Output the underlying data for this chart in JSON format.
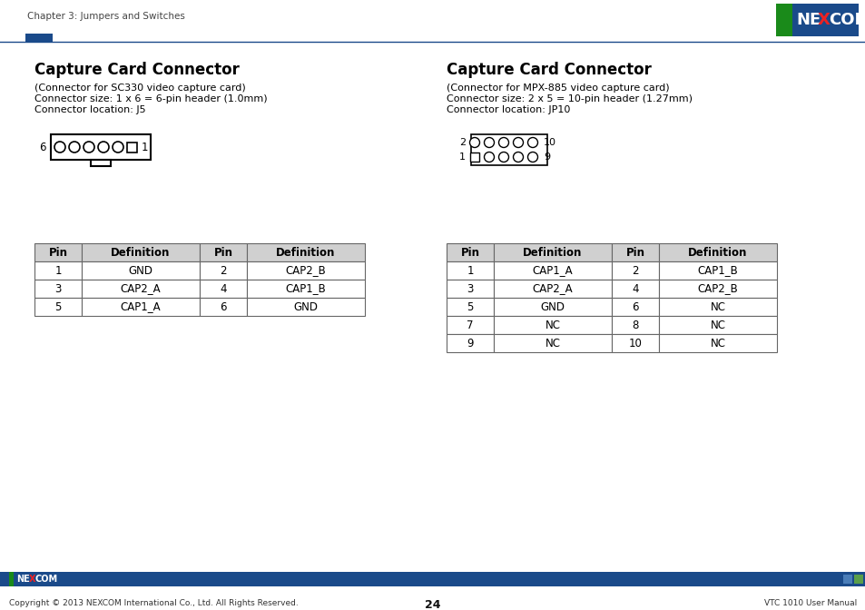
{
  "page_title": "Chapter 3: Jumpers and Switches",
  "page_number": "24",
  "footer_left": "Copyright © 2013 NEXCOM International Co., Ltd. All Rights Reserved.",
  "footer_right": "VTC 1010 User Manual",
  "header_bar_color": "#1a4a8a",
  "nexcom_green": "#1a8a1a",
  "nexcom_blue": "#1a4a8a",
  "left_section_title": "Capture Card Connector",
  "left_line1": "(Connector for SC330 video capture card)",
  "left_line2": "Connector size: 1 x 6 = 6-pin header (1.0mm)",
  "left_line3": "Connector location: J5",
  "right_section_title": "Capture Card Connector",
  "right_line1": "(Connector for MPX-885 video capture card)",
  "right_line2": "Connector size: 2 x 5 = 10-pin header (1.27mm)",
  "right_line3": "Connector location: JP10",
  "left_table_headers": [
    "Pin",
    "Definition",
    "Pin",
    "Definition"
  ],
  "left_table_rows": [
    [
      "1",
      "GND",
      "2",
      "CAP2_B"
    ],
    [
      "3",
      "CAP2_A",
      "4",
      "CAP1_B"
    ],
    [
      "5",
      "CAP1_A",
      "6",
      "GND"
    ]
  ],
  "right_table_headers": [
    "Pin",
    "Definition",
    "Pin",
    "Definition"
  ],
  "right_table_rows": [
    [
      "1",
      "CAP1_A",
      "2",
      "CAP1_B"
    ],
    [
      "3",
      "CAP2_A",
      "4",
      "CAP2_B"
    ],
    [
      "5",
      "GND",
      "6",
      "NC"
    ],
    [
      "7",
      "NC",
      "8",
      "NC"
    ],
    [
      "9",
      "NC",
      "10",
      "NC"
    ]
  ],
  "bg_color": "#ffffff",
  "text_color": "#000000",
  "title_color": "#000000"
}
